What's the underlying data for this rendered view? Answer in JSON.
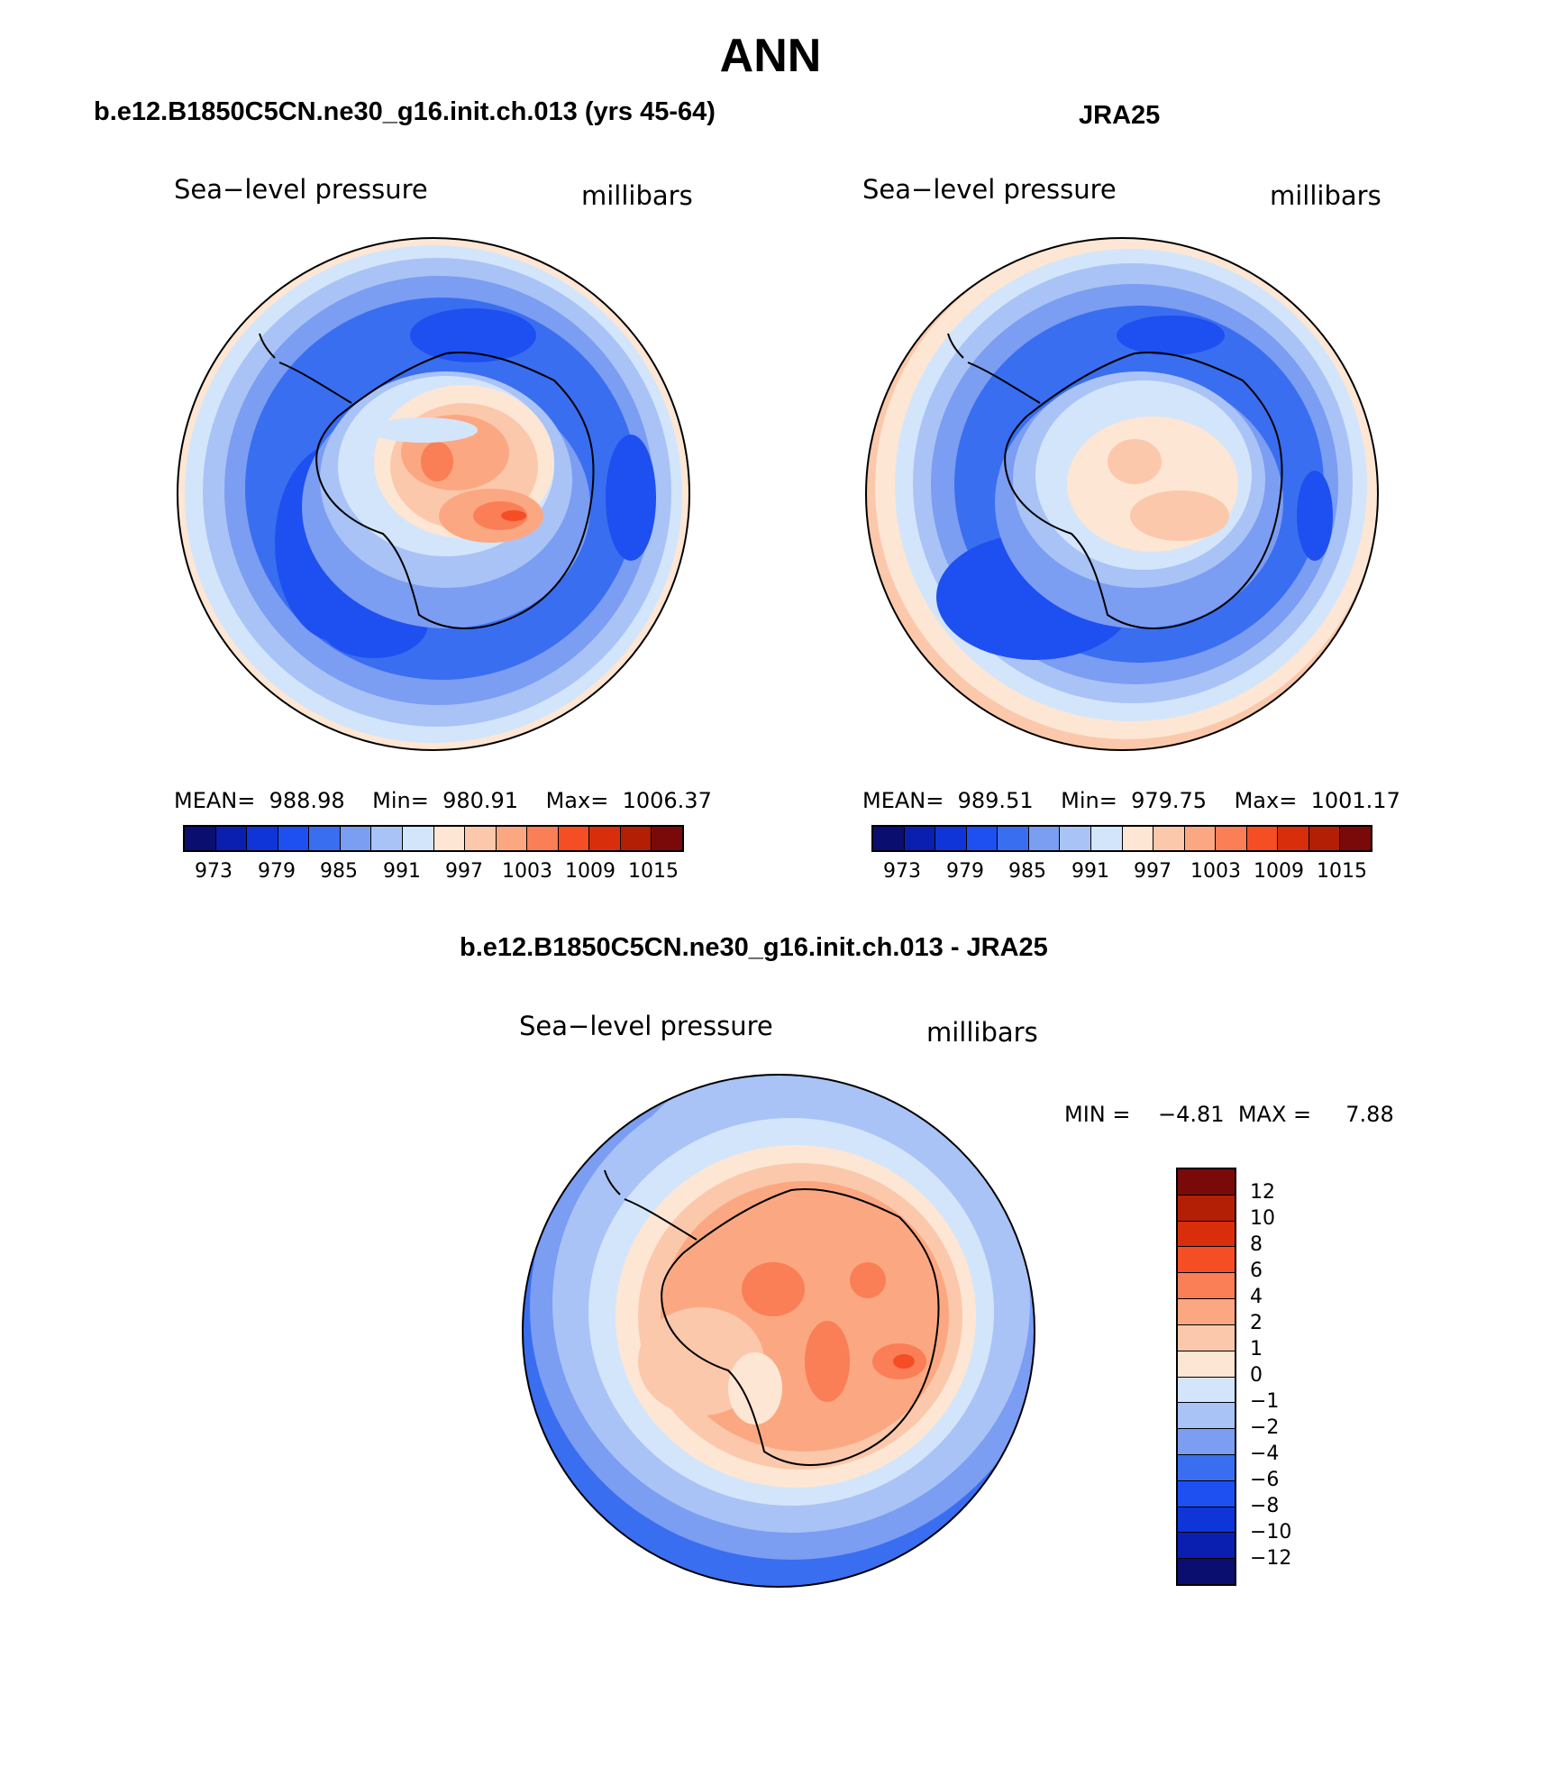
{
  "figure": {
    "title": "ANN",
    "colors_abs": [
      "#0a0e6e",
      "#0a1fb0",
      "#0f35d9",
      "#1e4ff0",
      "#3a6ef0",
      "#7b9df2",
      "#a9c3f6",
      "#d3e5fb",
      "#fde6d4",
      "#fcc8ab",
      "#fba882",
      "#fa7e56",
      "#f54e25",
      "#d92e0b",
      "#b21f05",
      "#7a0a0a"
    ],
    "colors_diff": [
      "#0a0e6e",
      "#0a1fb0",
      "#0f35d9",
      "#1e4ff0",
      "#3a6ef0",
      "#7b9df2",
      "#a9c3f6",
      "#d3e5fb",
      "#fde6d4",
      "#fcc8ab",
      "#fba882",
      "#fa7e56",
      "#f54e25",
      "#d92e0b",
      "#b21f05",
      "#7a0a0a"
    ]
  },
  "panel_left": {
    "title": "b.e12.B1850C5CN.ne30_g16.init.ch.013 (yrs 45-64)",
    "variable": "Sea−level pressure",
    "units": "millibars",
    "mean_label": "MEAN=",
    "mean": "988.98",
    "min_label": "Min=",
    "min": "980.91",
    "max_label": "Max=",
    "max": "1006.37",
    "ticks": [
      "973",
      "979",
      "985",
      "991",
      "997",
      "1003",
      "1009",
      "1015"
    ]
  },
  "panel_right": {
    "title": "JRA25",
    "variable": "Sea−level pressure",
    "units": "millibars",
    "mean_label": "MEAN=",
    "mean": "989.51",
    "min_label": "Min=",
    "min": "979.75",
    "max_label": "Max=",
    "max": "1001.17",
    "ticks": [
      "973",
      "979",
      "985",
      "991",
      "997",
      "1003",
      "1009",
      "1015"
    ]
  },
  "panel_diff": {
    "title": "b.e12.B1850C5CN.ne30_g16.init.ch.013 - JRA25",
    "variable": "Sea−level pressure",
    "units": "millibars",
    "min_label": "MIN =",
    "min": "−4.81",
    "max_label": "MAX =",
    "max": "7.88",
    "ticks": [
      "12",
      "10",
      "8",
      "6",
      "4",
      "2",
      "1",
      "0",
      "−1",
      "−2",
      "−4",
      "−6",
      "−8",
      "−10",
      "−12"
    ]
  }
}
